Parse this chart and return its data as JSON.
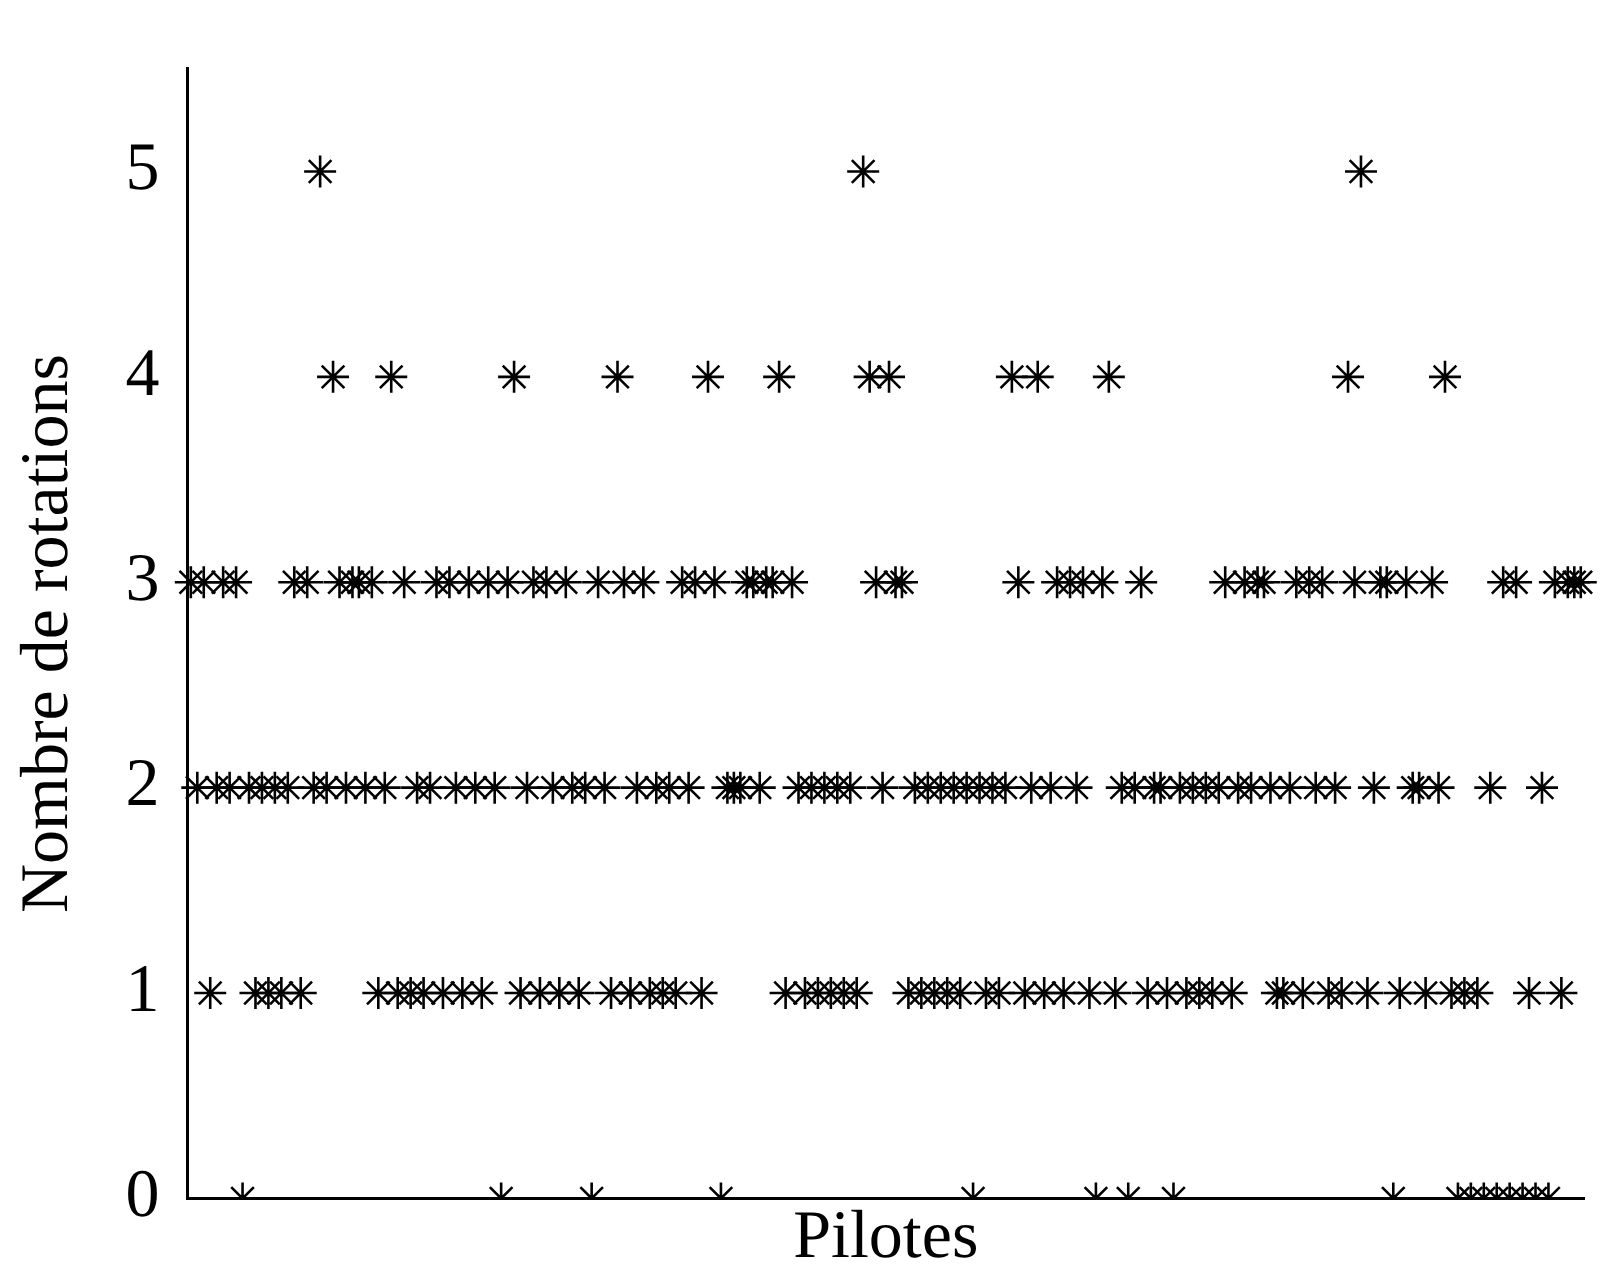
{
  "chart_data": {
    "type": "scatter",
    "xlabel": "Pilotes",
    "ylabel": "Nombre de rotations",
    "categories": [
      null,
      null,
      null,
      null,
      null,
      null,
      null,
      null,
      null,
      null,
      null,
      null,
      null,
      null,
      null,
      null,
      null,
      null,
      null,
      null,
      null,
      null,
      null,
      null,
      null,
      null,
      null,
      null,
      null,
      null,
      null,
      null,
      null,
      null,
      null,
      null,
      null,
      null,
      null,
      null,
      null,
      null,
      null,
      null,
      null,
      null,
      null,
      null,
      null,
      null,
      null,
      null,
      null,
      null,
      null,
      null,
      null,
      null,
      null,
      null,
      null,
      null,
      null,
      null,
      null,
      null,
      null,
      null,
      null,
      null,
      null,
      null,
      null,
      null,
      null,
      null,
      null,
      null,
      null,
      null,
      null,
      null,
      null,
      null,
      null,
      null,
      null,
      null,
      null,
      null,
      null,
      null,
      null,
      null,
      null,
      null,
      null,
      null,
      null,
      null,
      null,
      null,
      null,
      null,
      null,
      null,
      null,
      null,
      null,
      null,
      null,
      null,
      null,
      null,
      null,
      null,
      null,
      null,
      null,
      null,
      null,
      null,
      null,
      null,
      null,
      null,
      null,
      null,
      null,
      null,
      null,
      null,
      null,
      null,
      null,
      null,
      null,
      null,
      null,
      null,
      null,
      null,
      null,
      null,
      null,
      null,
      null,
      null,
      null,
      null,
      null,
      null,
      null,
      null,
      null,
      null,
      null,
      null,
      null,
      null,
      null,
      null,
      null,
      null,
      null,
      null,
      null,
      null,
      null,
      null,
      null,
      null,
      null,
      null,
      null,
      null,
      null,
      null,
      null,
      null,
      null,
      null,
      null,
      null,
      null,
      null,
      null,
      null,
      null,
      null,
      null,
      null,
      null,
      null,
      null,
      null,
      null,
      null,
      null,
      null,
      null,
      null,
      null,
      null,
      null,
      null,
      null,
      null,
      null,
      null,
      null,
      null,
      null,
      null,
      null,
      null
    ],
    "series": [
      {
        "color": "#000000",
        "values": [
          3,
          2,
          3,
          1,
          2,
          3,
          2,
          3,
          0,
          2,
          1,
          2,
          1,
          2,
          1,
          2,
          3,
          1,
          3,
          2,
          5,
          2,
          4,
          3,
          2,
          3,
          3,
          2,
          3,
          1,
          2,
          4,
          1,
          3,
          1,
          2,
          1,
          2,
          3,
          1,
          3,
          2,
          1,
          3,
          2,
          1,
          3,
          2,
          0,
          3,
          4,
          1,
          2,
          3,
          1,
          3,
          2,
          1,
          3,
          2,
          1,
          2,
          0,
          3,
          2,
          1,
          4,
          3,
          1,
          2,
          3,
          1,
          2,
          1,
          2,
          1,
          3,
          2,
          3,
          1,
          4,
          3,
          0,
          2,
          2,
          2,
          3,
          3,
          2,
          3,
          3,
          4,
          1,
          3,
          2,
          1,
          2,
          1,
          2,
          1,
          2,
          1,
          2,
          1,
          5,
          4,
          3,
          2,
          4,
          3,
          3,
          1,
          2,
          1,
          2,
          1,
          2,
          1,
          2,
          1,
          2,
          0,
          2,
          1,
          2,
          1,
          2,
          4,
          3,
          1,
          2,
          4,
          1,
          2,
          3,
          1,
          3,
          2,
          3,
          1,
          0,
          3,
          4,
          1,
          2,
          0,
          2,
          3,
          1,
          2,
          2,
          1,
          0,
          2,
          1,
          2,
          1,
          2,
          1,
          2,
          3,
          1,
          2,
          3,
          2,
          3,
          3,
          2,
          1,
          1,
          2,
          3,
          1,
          3,
          2,
          3,
          1,
          2,
          1,
          4,
          3,
          5,
          1,
          2,
          3,
          3,
          0,
          1,
          3,
          2,
          2,
          1,
          3,
          2,
          4,
          1,
          0,
          1,
          0,
          1,
          0,
          2,
          0,
          3,
          0,
          3,
          0,
          1,
          0,
          2,
          0,
          3,
          1,
          3,
          3,
          3
        ]
      }
    ],
    "ylim": [
      0,
      5.5
    ],
    "yticks": [
      0,
      1,
      2,
      3,
      4,
      5
    ],
    "grid": false,
    "legend": false,
    "marker": "cross",
    "tick_labels": "y"
  }
}
